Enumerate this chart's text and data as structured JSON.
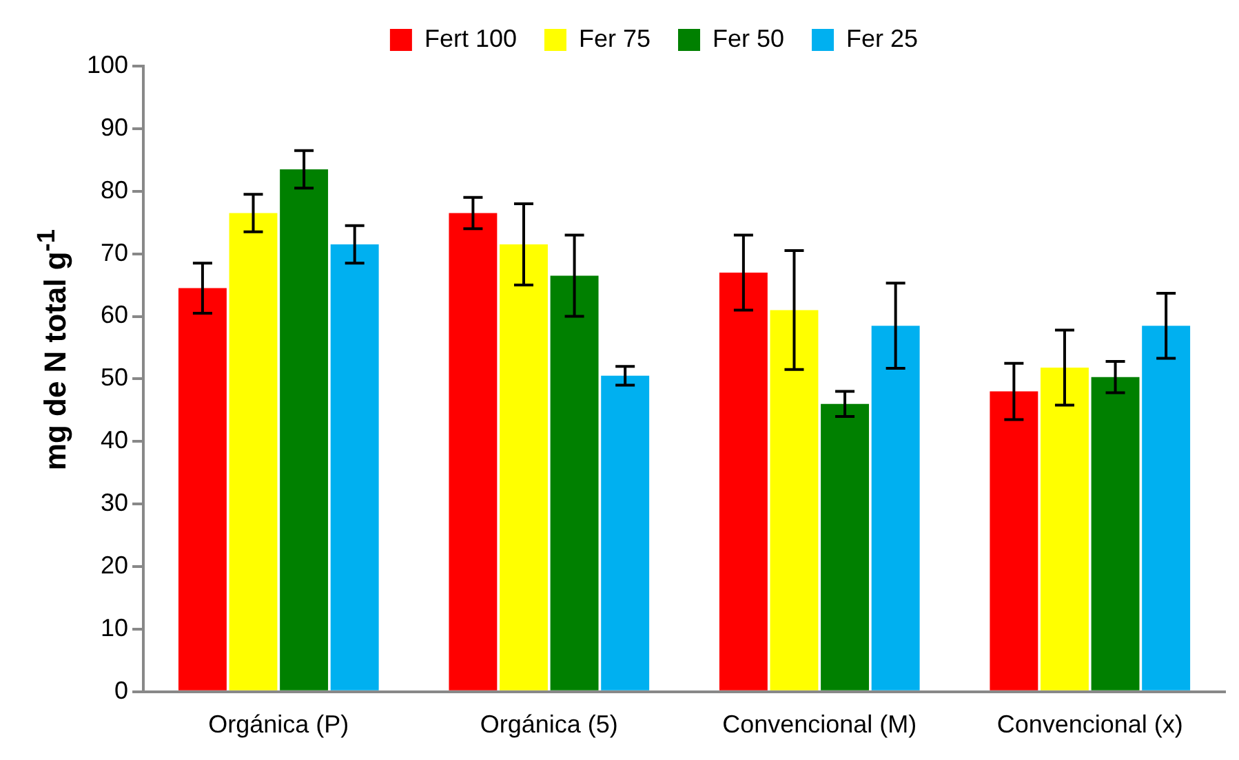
{
  "chart_data": {
    "type": "bar",
    "ylabel": "mg de N total g$^{-1}$",
    "categories": [
      "Orgánica (P)",
      "Orgánica (5)",
      "Convencional (M)",
      "Convencional (x)"
    ],
    "series": [
      {
        "name": "Fert 100",
        "color": "#ff0000",
        "values": [
          64.5,
          76.5,
          67,
          48
        ],
        "errors": [
          4,
          2.5,
          6,
          4.5
        ]
      },
      {
        "name": "Fer 75",
        "color": "#ffff00",
        "values": [
          76.5,
          71.5,
          61,
          51.8
        ],
        "errors": [
          3,
          6.5,
          9.5,
          6
        ]
      },
      {
        "name": "Fer 50",
        "color": "#008000",
        "values": [
          83.5,
          66.5,
          46,
          50.3
        ],
        "errors": [
          3,
          6.5,
          2,
          2.5
        ]
      },
      {
        "name": "Fer 25",
        "color": "#00b0f0",
        "values": [
          71.5,
          50.5,
          58.5,
          58.5
        ],
        "errors": [
          3,
          1.5,
          6.8,
          5.2
        ]
      }
    ],
    "ylim": [
      0,
      100
    ],
    "yticks": [
      0,
      10,
      20,
      30,
      40,
      50,
      60,
      70,
      80,
      90,
      100
    ],
    "grid": false,
    "legend": "top"
  }
}
